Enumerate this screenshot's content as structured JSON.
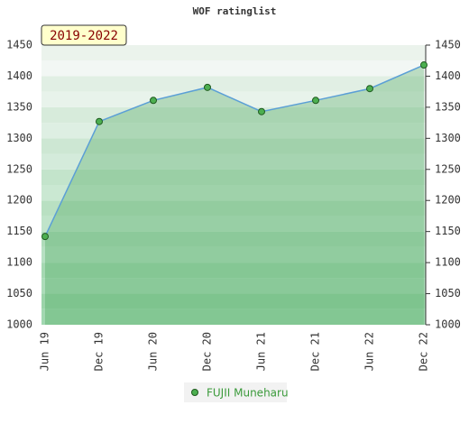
{
  "chart_data": {
    "type": "line",
    "title": "WOF ratinglist",
    "badge": "2019-2022",
    "categories": [
      "Jun 19",
      "Dec 19",
      "Jun 20",
      "Dec 20",
      "Jun 21",
      "Dec 21",
      "Jun 22",
      "Dec 22"
    ],
    "series": [
      {
        "name": "FUJII Muneharu",
        "color": "#5b9fd6",
        "values": [
          1142,
          1327,
          1361,
          1382,
          1343,
          1361,
          1380,
          1418
        ]
      }
    ],
    "ylim": [
      1000,
      1450
    ],
    "yticks": [
      1000,
      1050,
      1100,
      1150,
      1200,
      1250,
      1300,
      1350,
      1400,
      1450
    ],
    "area": true
  }
}
